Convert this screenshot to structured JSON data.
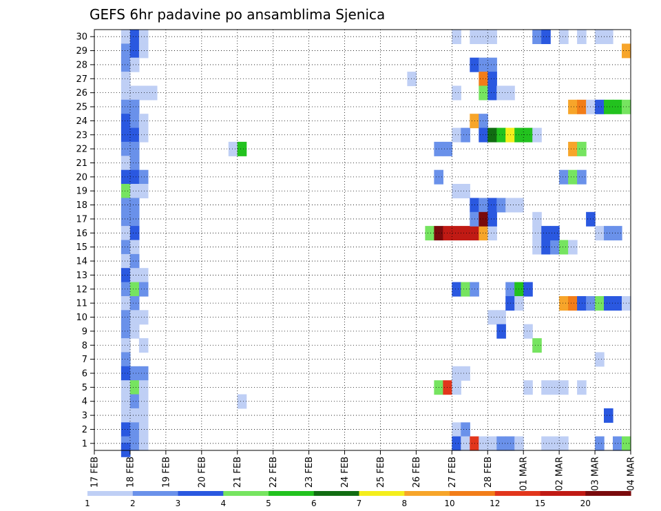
{
  "chart_data": {
    "type": "heatmap",
    "title": "GEFS 6hr padavine po ansamblima Sjenica",
    "xlabel": "",
    "ylabel": "",
    "x_ticks": [
      "17 FEB",
      "18 FEB",
      "19 FEB",
      "20 FEB",
      "21 FEB",
      "22 FEB",
      "23 FEB",
      "24 FEB",
      "25 FEB",
      "26 FEB",
      "27 FEB",
      "28 FEB",
      "01 MAR",
      "02 MAR",
      "03 MAR",
      "04 MAR"
    ],
    "x_range_days": [
      0,
      15
    ],
    "y_ticks": [
      1,
      2,
      3,
      4,
      5,
      6,
      7,
      8,
      9,
      10,
      11,
      12,
      13,
      14,
      15,
      16,
      17,
      18,
      19,
      20,
      21,
      22,
      23,
      24,
      25,
      26,
      27,
      28,
      29,
      30
    ],
    "ylim": [
      0.5,
      30.5
    ],
    "grid": true,
    "colorbar": {
      "labels": [
        "1",
        "2",
        "3",
        "4",
        "5",
        "6",
        "7",
        "8",
        "10",
        "12",
        "15",
        "20"
      ],
      "levels": [
        1,
        2,
        3,
        4,
        5,
        6,
        7,
        8,
        10,
        12,
        15,
        20,
        30
      ],
      "colors": [
        "#bfcff5",
        "#6a91ea",
        "#2a58e0",
        "#76e460",
        "#22c21e",
        "#116c12",
        "#f4ee1c",
        "#f7a52a",
        "#f27d19",
        "#e2361c",
        "#c01a14",
        "#7a0a0c"
      ]
    },
    "color_levels": {
      "1": "#bfcff5",
      "2": "#6a91ea",
      "3": "#2a58e0",
      "4": "#76e460",
      "5": "#22c21e",
      "6": "#116c12",
      "7": "#f4ee1c",
      "8": "#f7a52a",
      "10": "#f27d19",
      "12": "#e2361c",
      "15": "#c01a14",
      "20": "#7a0a0c"
    },
    "cells": [
      [
        0.75,
        30,
        1
      ],
      [
        1.0,
        30,
        3
      ],
      [
        1.25,
        30,
        1
      ],
      [
        0.75,
        29,
        2
      ],
      [
        1.0,
        29,
        3
      ],
      [
        1.25,
        29,
        1
      ],
      [
        0.75,
        28,
        2
      ],
      [
        1.0,
        28,
        1
      ],
      [
        0.75,
        27,
        1
      ],
      [
        0.75,
        26,
        1
      ],
      [
        1.0,
        26,
        1
      ],
      [
        1.25,
        26,
        1
      ],
      [
        1.5,
        26,
        1
      ],
      [
        0.75,
        25,
        2
      ],
      [
        1.0,
        25,
        2
      ],
      [
        0.75,
        24,
        3
      ],
      [
        1.0,
        24,
        2
      ],
      [
        1.25,
        24,
        1
      ],
      [
        0.75,
        23,
        3
      ],
      [
        1.0,
        23,
        3
      ],
      [
        1.25,
        23,
        1
      ],
      [
        0.75,
        22,
        2
      ],
      [
        1.0,
        22,
        2
      ],
      [
        0.75,
        21,
        1
      ],
      [
        1.0,
        21,
        2
      ],
      [
        0.75,
        20,
        3
      ],
      [
        1.0,
        20,
        3
      ],
      [
        1.25,
        20,
        2
      ],
      [
        0.75,
        19,
        4
      ],
      [
        1.0,
        19,
        1
      ],
      [
        1.25,
        19,
        1
      ],
      [
        0.75,
        18,
        2
      ],
      [
        1.0,
        18,
        2
      ],
      [
        0.75,
        17,
        2
      ],
      [
        1.0,
        17,
        2
      ],
      [
        0.75,
        16,
        1
      ],
      [
        1.0,
        16,
        3
      ],
      [
        0.75,
        15,
        2
      ],
      [
        1.0,
        15,
        1
      ],
      [
        0.75,
        14,
        1
      ],
      [
        1.0,
        14,
        2
      ],
      [
        0.75,
        13,
        3
      ],
      [
        1.0,
        13,
        1
      ],
      [
        1.25,
        13,
        1
      ],
      [
        0.75,
        12,
        2
      ],
      [
        1.0,
        12,
        4
      ],
      [
        1.25,
        12,
        2
      ],
      [
        0.75,
        11,
        1
      ],
      [
        1.0,
        11,
        2
      ],
      [
        0.75,
        10,
        2
      ],
      [
        1.0,
        10,
        1
      ],
      [
        1.25,
        10,
        1
      ],
      [
        0.75,
        9,
        2
      ],
      [
        1.0,
        9,
        1
      ],
      [
        0.75,
        8,
        1
      ],
      [
        1.25,
        8,
        1
      ],
      [
        0.75,
        7,
        2
      ],
      [
        0.75,
        6,
        3
      ],
      [
        1.0,
        6,
        2
      ],
      [
        1.25,
        6,
        2
      ],
      [
        0.75,
        5,
        1
      ],
      [
        1.0,
        5,
        4
      ],
      [
        1.25,
        5,
        1
      ],
      [
        0.75,
        4,
        1
      ],
      [
        1.0,
        4,
        2
      ],
      [
        1.25,
        4,
        1
      ],
      [
        0.75,
        3,
        1
      ],
      [
        1.0,
        3,
        1
      ],
      [
        1.25,
        3,
        1
      ],
      [
        0.75,
        2,
        3
      ],
      [
        1.0,
        2,
        2
      ],
      [
        1.25,
        2,
        1
      ],
      [
        0.75,
        1,
        2
      ],
      [
        1.0,
        1,
        2
      ],
      [
        1.25,
        1,
        1
      ],
      [
        0.75,
        0.55,
        3
      ],
      [
        3.75,
        22,
        1
      ],
      [
        4.0,
        22,
        5
      ],
      [
        4.0,
        4,
        1
      ],
      [
        8.75,
        27,
        1
      ],
      [
        9.25,
        16,
        4
      ],
      [
        9.5,
        16,
        20
      ],
      [
        9.75,
        16,
        15
      ],
      [
        10.0,
        16,
        15
      ],
      [
        10.25,
        16,
        15
      ],
      [
        10.5,
        16,
        15
      ],
      [
        10.75,
        16,
        8
      ],
      [
        11.0,
        16,
        1
      ],
      [
        9.5,
        22,
        2
      ],
      [
        9.75,
        22,
        2
      ],
      [
        9.5,
        20,
        2
      ],
      [
        9.5,
        5,
        4
      ],
      [
        9.75,
        5,
        12
      ],
      [
        10.0,
        30,
        1
      ],
      [
        10.0,
        26,
        1
      ],
      [
        10.0,
        23,
        1
      ],
      [
        10.25,
        23,
        2
      ],
      [
        10.0,
        19,
        1
      ],
      [
        10.25,
        19,
        1
      ],
      [
        10.0,
        12,
        3
      ],
      [
        10.25,
        12,
        4
      ],
      [
        10.5,
        12,
        2
      ],
      [
        10.0,
        6,
        1
      ],
      [
        10.25,
        6,
        1
      ],
      [
        10.0,
        5,
        1
      ],
      [
        10.0,
        2,
        1
      ],
      [
        10.25,
        2,
        2
      ],
      [
        10.0,
        1,
        3
      ],
      [
        10.25,
        1,
        1
      ],
      [
        10.5,
        1,
        12
      ],
      [
        10.75,
        1,
        1
      ],
      [
        11.0,
        1,
        1
      ],
      [
        11.25,
        1,
        2
      ],
      [
        11.5,
        1,
        2
      ],
      [
        11.75,
        1,
        1
      ],
      [
        10.5,
        30,
        1
      ],
      [
        10.75,
        30,
        1
      ],
      [
        11.0,
        30,
        1
      ],
      [
        10.5,
        28,
        3
      ],
      [
        10.75,
        28,
        2
      ],
      [
        11.0,
        28,
        2
      ],
      [
        10.75,
        27,
        10
      ],
      [
        11.0,
        27,
        3
      ],
      [
        10.75,
        26,
        4
      ],
      [
        11.0,
        26,
        3
      ],
      [
        11.25,
        26,
        1
      ],
      [
        11.5,
        26,
        1
      ],
      [
        10.5,
        24,
        8
      ],
      [
        10.75,
        24,
        2
      ],
      [
        10.75,
        23,
        3
      ],
      [
        11.0,
        23,
        6
      ],
      [
        11.25,
        23,
        5
      ],
      [
        11.5,
        23,
        7
      ],
      [
        11.75,
        23,
        5
      ],
      [
        12.0,
        23,
        5
      ],
      [
        12.25,
        23,
        1
      ],
      [
        10.5,
        18,
        3
      ],
      [
        10.75,
        18,
        2
      ],
      [
        11.0,
        18,
        3
      ],
      [
        11.25,
        18,
        2
      ],
      [
        11.5,
        18,
        1
      ],
      [
        11.75,
        18,
        1
      ],
      [
        10.5,
        17,
        2
      ],
      [
        10.75,
        17,
        20
      ],
      [
        11.0,
        17,
        3
      ],
      [
        11.0,
        10,
        1
      ],
      [
        11.25,
        10,
        1
      ],
      [
        11.25,
        9,
        3
      ],
      [
        11.5,
        12,
        2
      ],
      [
        11.75,
        12,
        5
      ],
      [
        12.0,
        12,
        3
      ],
      [
        11.5,
        11,
        3
      ],
      [
        11.75,
        11,
        1
      ],
      [
        12.25,
        17,
        1
      ],
      [
        12.25,
        15,
        1
      ],
      [
        12.5,
        15,
        3
      ],
      [
        12.75,
        15,
        2
      ],
      [
        13.0,
        15,
        4
      ],
      [
        13.25,
        15,
        1
      ],
      [
        12.25,
        16,
        1
      ],
      [
        12.5,
        16,
        3
      ],
      [
        12.75,
        16,
        3
      ],
      [
        12.0,
        9,
        1
      ],
      [
        12.25,
        8,
        4
      ],
      [
        12.0,
        5,
        1
      ],
      [
        12.5,
        5,
        1
      ],
      [
        12.75,
        5,
        1
      ],
      [
        13.0,
        5,
        1
      ],
      [
        13.5,
        5,
        1
      ],
      [
        12.25,
        30,
        2
      ],
      [
        12.5,
        30,
        3
      ],
      [
        12.5,
        1,
        1
      ],
      [
        12.75,
        1,
        1
      ],
      [
        13.0,
        1,
        1
      ],
      [
        13.0,
        30,
        1
      ],
      [
        13.5,
        30,
        1
      ],
      [
        14.0,
        30,
        1
      ],
      [
        14.25,
        30,
        1
      ],
      [
        13.25,
        25,
        8
      ],
      [
        13.5,
        25,
        10
      ],
      [
        13.75,
        25,
        1
      ],
      [
        14.0,
        25,
        3
      ],
      [
        14.25,
        25,
        5
      ],
      [
        14.5,
        25,
        5
      ],
      [
        14.75,
        25,
        4
      ],
      [
        13.25,
        22,
        8
      ],
      [
        13.5,
        22,
        4
      ],
      [
        13.0,
        20,
        2
      ],
      [
        13.25,
        20,
        4
      ],
      [
        13.5,
        20,
        2
      ],
      [
        13.75,
        17,
        3
      ],
      [
        14.0,
        16,
        1
      ],
      [
        14.25,
        16,
        2
      ],
      [
        14.5,
        16,
        2
      ],
      [
        13.0,
        11,
        8
      ],
      [
        13.25,
        11,
        10
      ],
      [
        13.5,
        11,
        3
      ],
      [
        13.75,
        11,
        2
      ],
      [
        14.0,
        11,
        4
      ],
      [
        14.25,
        11,
        3
      ],
      [
        14.5,
        11,
        3
      ],
      [
        14.75,
        11,
        1
      ],
      [
        14.0,
        7,
        1
      ],
      [
        14.25,
        3,
        3
      ],
      [
        14.0,
        1,
        2
      ],
      [
        14.5,
        1,
        2
      ],
      [
        14.75,
        1,
        4
      ],
      [
        14.75,
        29,
        8
      ]
    ]
  }
}
